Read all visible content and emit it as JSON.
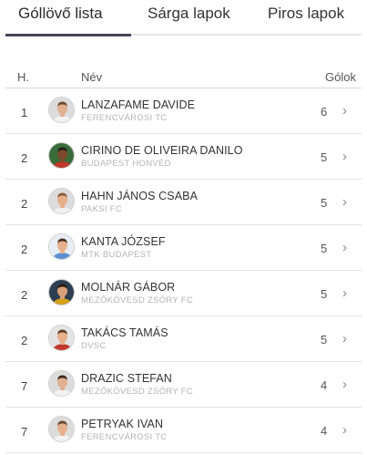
{
  "tabs": [
    {
      "label": "Góllövő lista",
      "active": true
    },
    {
      "label": "Sárga lapok",
      "active": false
    },
    {
      "label": "Piros lapok",
      "active": false
    }
  ],
  "table": {
    "headers": {
      "rank": "H.",
      "name": "Név",
      "goals": "Gólok"
    },
    "rows": [
      {
        "rank": "1",
        "name": "LANZAFAME DAVIDE",
        "team": "FERENCVÁROSI TC",
        "goals": "6",
        "avatar": {
          "bg": "#dcdcdc",
          "shirt": "#f2f2f2",
          "skin": "#e0b090",
          "hair": "#6b4a30"
        }
      },
      {
        "rank": "2",
        "name": "CIRINO DE OLIVEIRA DANILO",
        "team": "BUDAPEST HONVÉD",
        "goals": "5",
        "avatar": {
          "bg": "#3a6b3a",
          "shirt": "#c0392b",
          "skin": "#7a4a2a",
          "hair": "#1e1e1e"
        }
      },
      {
        "rank": "2",
        "name": "HAHN JÁNOS CSABA",
        "team": "PAKSI FC",
        "goals": "5",
        "avatar": {
          "bg": "#dcdcdc",
          "shirt": "#f0f0f0",
          "skin": "#e6b08c",
          "hair": "#8a5a3a"
        }
      },
      {
        "rank": "2",
        "name": "KANTA JÓZSEF",
        "team": "MTK BUDAPEST",
        "goals": "5",
        "avatar": {
          "bg": "#e8eef6",
          "shirt": "#5b8fd0",
          "skin": "#e6b08c",
          "hair": "#4a3020"
        }
      },
      {
        "rank": "2",
        "name": "MOLNÁR GÁBOR",
        "team": "MEZŐKÖVESD ZSÓRY FC",
        "goals": "5",
        "avatar": {
          "bg": "#2c3e50",
          "shirt": "#d4a017",
          "skin": "#d8a07a",
          "hair": "#2a1a10"
        }
      },
      {
        "rank": "2",
        "name": "TAKÁCS TAMÁS",
        "team": "DVSC",
        "goals": "5",
        "avatar": {
          "bg": "#e4e4e4",
          "shirt": "#c0392b",
          "skin": "#e6b08c",
          "hair": "#5a3a20"
        }
      },
      {
        "rank": "7",
        "name": "DRAZIC STEFAN",
        "team": "MEZŐKÖVESD ZSÓRY FC",
        "goals": "4",
        "avatar": {
          "bg": "#dcdcdc",
          "shirt": "#f2f2f2",
          "skin": "#e0b090",
          "hair": "#3a2a1a"
        }
      },
      {
        "rank": "7",
        "name": "PETRYAK IVAN",
        "team": "FERENCVÁROSI TC",
        "goals": "4",
        "avatar": {
          "bg": "#dcdcdc",
          "shirt": "#f2f2f2",
          "skin": "#e6b08c",
          "hair": "#6b4a30"
        }
      }
    ],
    "row_icon": "chevron-right-icon"
  }
}
